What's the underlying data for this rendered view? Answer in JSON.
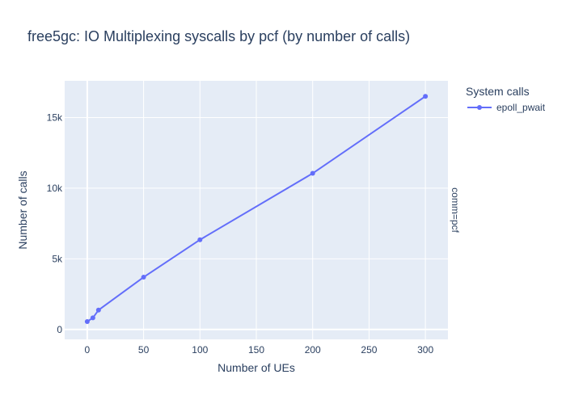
{
  "chart_data": {
    "type": "line",
    "title": "free5gc: IO Multiplexing syscalls by pcf (by number of calls)",
    "xlabel": "Number of UEs",
    "ylabel": "Number of calls",
    "xlim": [
      -20,
      320
    ],
    "ylim": [
      -700,
      17600
    ],
    "x_ticks": [
      0,
      50,
      100,
      150,
      200,
      250,
      300
    ],
    "x_tick_labels": [
      "0",
      "50",
      "100",
      "150",
      "200",
      "250",
      "300"
    ],
    "y_ticks": [
      0,
      5000,
      10000,
      15000
    ],
    "y_tick_labels": [
      "0",
      "5k",
      "10k",
      "15k"
    ],
    "grid": true,
    "legend": {
      "title": "System calls",
      "placement": "right"
    },
    "facet_label": "comm=pcf",
    "colors": {
      "plot_bg": "#e5ecf6",
      "grid": "#ffffff",
      "series": "#636efa",
      "text": "#2a3f5f"
    },
    "series": [
      {
        "name": "epoll_pwait",
        "x": [
          0,
          5,
          10,
          50,
          100,
          200,
          300
        ],
        "y": [
          560,
          820,
          1370,
          3700,
          6350,
          11050,
          16500
        ]
      }
    ]
  }
}
